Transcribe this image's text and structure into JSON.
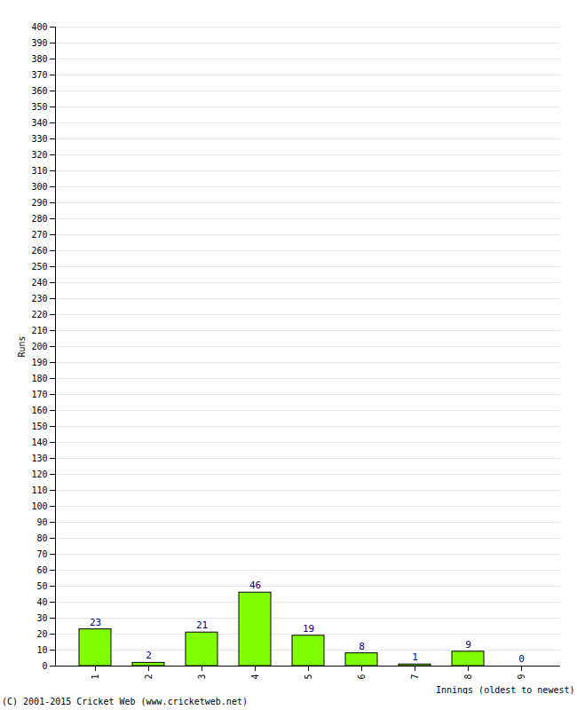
{
  "chart_data": {
    "type": "bar",
    "categories": [
      "1",
      "2",
      "3",
      "4",
      "5",
      "6",
      "7",
      "8",
      "9"
    ],
    "values": [
      23,
      2,
      21,
      46,
      19,
      8,
      1,
      9,
      0
    ],
    "color": "#80ff00",
    "x_label": "Innings (oldest to newest)",
    "y_label": "Runs",
    "caption": "(C) 2001-2015 Cricket Web (www.cricketweb.net)",
    "ylim": [
      0,
      400
    ],
    "yticks": [
      0,
      10,
      20,
      30,
      40,
      50,
      60,
      70,
      80,
      90,
      100,
      110,
      120,
      130,
      140,
      150,
      160,
      170,
      180,
      190,
      200,
      210,
      220,
      230,
      240,
      250,
      260,
      270,
      280,
      290,
      300,
      310,
      320,
      330,
      340,
      350,
      360,
      370,
      380,
      390,
      400
    ],
    "grid": true,
    "data_labels": true
  }
}
